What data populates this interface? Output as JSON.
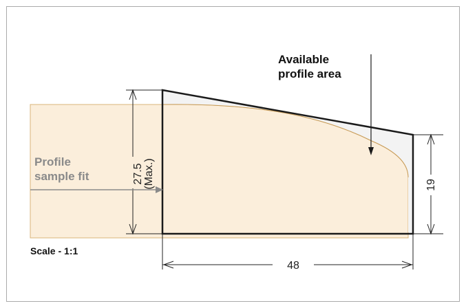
{
  "labels": {
    "available_line1": "Available",
    "available_line2": "profile area",
    "sample_line1": "Profile",
    "sample_line2": "sample fit",
    "scale": "Scale - 1:1"
  },
  "dimensions": {
    "height_max_value": "27.5",
    "height_max_note": "(Max.)",
    "right_height": "19",
    "width": "48"
  },
  "colors": {
    "sample_fill": "#fbeedb",
    "sample_stroke": "#d8b47a",
    "available_fill": "#f4f4f4",
    "outline": "#1a1a1a",
    "arrow_gray": "#8a8a8a"
  }
}
